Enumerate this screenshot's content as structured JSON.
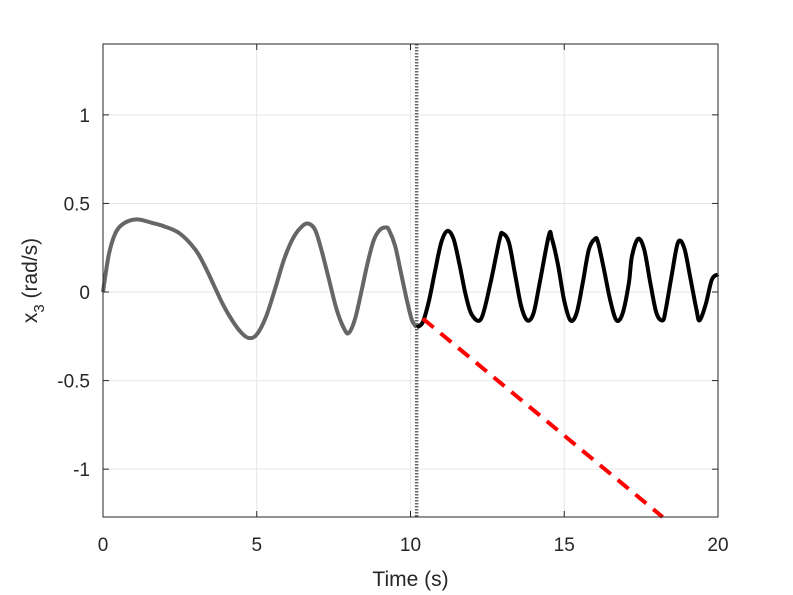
{
  "chart_data": {
    "type": "line",
    "title": "",
    "xlabel": "Time (s)",
    "ylabel_main": "x",
    "ylabel_sub": "3",
    "ylabel_rest": " (rad/s)",
    "xlim": [
      0,
      20
    ],
    "ylim": [
      -1.27,
      1.4
    ],
    "xticks": [
      0,
      5,
      10,
      15,
      20
    ],
    "xtick_labels": [
      "0",
      "5",
      "10",
      "15",
      "20"
    ],
    "yticks": [
      -1,
      -0.5,
      0,
      0.5,
      1
    ],
    "ytick_labels": [
      "-1",
      "-0.5",
      "0",
      "0.5",
      "1"
    ],
    "grid": true,
    "vertical_marker": {
      "x": 10.2,
      "color": "#666666",
      "style": "dotted"
    },
    "series": [
      {
        "color": "#666666",
        "style": "solid",
        "x": [
          0,
          0.1,
          0.2,
          0.35,
          0.5,
          0.7,
          0.9,
          1.1,
          1.3,
          1.6,
          2.0,
          2.5,
          3.0,
          3.3,
          3.6,
          3.9,
          4.2,
          4.5,
          4.75,
          5.0,
          5.3,
          5.6,
          5.9,
          6.2,
          6.5,
          6.7,
          6.9,
          7.1,
          7.35,
          7.6,
          7.85,
          8.0,
          8.2,
          8.4,
          8.6,
          8.8,
          9.0,
          9.2,
          9.3,
          9.5,
          9.7,
          9.9,
          10.05,
          10.2
        ],
        "y": [
          0.0,
          0.12,
          0.22,
          0.31,
          0.36,
          0.39,
          0.405,
          0.41,
          0.405,
          0.39,
          0.37,
          0.33,
          0.24,
          0.15,
          0.04,
          -0.07,
          -0.16,
          -0.23,
          -0.26,
          -0.24,
          -0.14,
          0.02,
          0.19,
          0.31,
          0.375,
          0.385,
          0.35,
          0.24,
          0.07,
          -0.1,
          -0.21,
          -0.23,
          -0.15,
          0.0,
          0.16,
          0.29,
          0.35,
          0.365,
          0.35,
          0.26,
          0.1,
          -0.06,
          -0.16,
          -0.2
        ]
      },
      {
        "color": "#000000",
        "style": "solid",
        "x": [
          10.2,
          10.4,
          10.6,
          10.8,
          11.0,
          11.2,
          11.4,
          11.6,
          11.8,
          12.0,
          12.3,
          12.6,
          12.9,
          13.0,
          13.2,
          13.4,
          13.6,
          13.8,
          14.0,
          14.2,
          14.5,
          14.6,
          14.8,
          15.0,
          15.2,
          15.4,
          15.6,
          15.8,
          16.0,
          16.1,
          16.3,
          16.5,
          16.7,
          16.9,
          17.1,
          17.2,
          17.4,
          17.6,
          17.8,
          18.0,
          18.2,
          18.3,
          18.5,
          18.7,
          18.9,
          19.1,
          19.3,
          19.4,
          19.6,
          19.8,
          20.0
        ],
        "y": [
          -0.2,
          -0.17,
          -0.05,
          0.12,
          0.28,
          0.345,
          0.3,
          0.15,
          -0.02,
          -0.13,
          -0.15,
          0.05,
          0.3,
          0.33,
          0.28,
          0.1,
          -0.08,
          -0.16,
          -0.12,
          0.05,
          0.32,
          0.3,
          0.15,
          -0.05,
          -0.16,
          -0.12,
          0.05,
          0.24,
          0.3,
          0.28,
          0.12,
          -0.05,
          -0.16,
          -0.12,
          0.05,
          0.2,
          0.3,
          0.24,
          0.05,
          -0.12,
          -0.16,
          -0.1,
          0.1,
          0.28,
          0.25,
          0.08,
          -0.1,
          -0.16,
          -0.07,
          0.07,
          0.1
        ]
      },
      {
        "color": "#ff0000",
        "style": "dashed",
        "x": [
          10.4,
          18.2
        ],
        "y": [
          -0.15,
          -1.27
        ]
      }
    ]
  }
}
